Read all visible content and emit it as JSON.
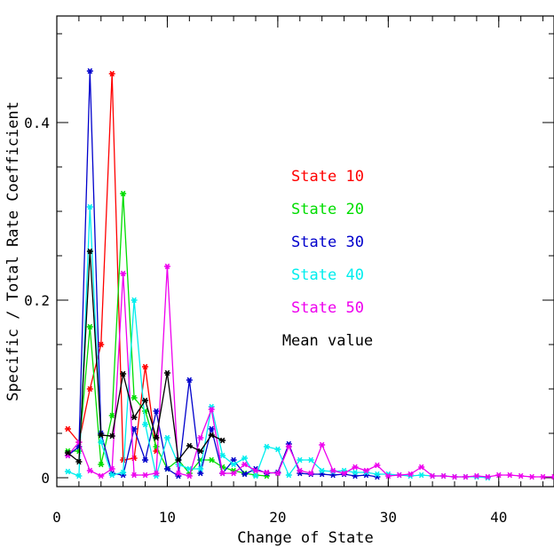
{
  "chart_data": {
    "type": "line",
    "xlabel": "Change of State",
    "ylabel": "Specific / Total Rate Coefficient",
    "xlim": [
      0,
      45
    ],
    "ylim": [
      -0.01,
      0.52
    ],
    "xticks": [
      0,
      10,
      20,
      30,
      40
    ],
    "yticks": [
      0,
      0.2,
      0.4
    ],
    "xticks_labels": [
      "0",
      "10",
      "20",
      "30",
      "40"
    ],
    "yticks_labels": [
      "0",
      "0.2",
      "0.4"
    ],
    "x_minor_step": 2,
    "y_minor_step": 0.05,
    "marker": "asterisk",
    "legend_position": "center-right",
    "series": [
      {
        "name": "State 10",
        "color": "#ff0000",
        "x": [
          1,
          2,
          3,
          4,
          5,
          6,
          7,
          8,
          9
        ],
        "y": [
          0.055,
          0.04,
          0.1,
          0.15,
          0.455,
          0.02,
          0.022,
          0.125,
          0.03
        ]
      },
      {
        "name": "State 20",
        "color": "#00dd00",
        "x": [
          1,
          2,
          3,
          4,
          5,
          6,
          7,
          8,
          9,
          10,
          11,
          12,
          13,
          14,
          15,
          16,
          17,
          18,
          19
        ],
        "y": [
          0.03,
          0.03,
          0.17,
          0.015,
          0.07,
          0.32,
          0.09,
          0.075,
          0.035,
          0.01,
          0.02,
          0.005,
          0.02,
          0.02,
          0.012,
          0.008,
          0.005,
          0.003,
          0.002
        ]
      },
      {
        "name": "State 30",
        "color": "#0000cc",
        "x": [
          1,
          2,
          3,
          4,
          5,
          6,
          7,
          8,
          9,
          10,
          11,
          12,
          13,
          14,
          15,
          16,
          17,
          18,
          19,
          20,
          21,
          22,
          23,
          24,
          25,
          26,
          27,
          28,
          29
        ],
        "y": [
          0.025,
          0.035,
          0.458,
          0.05,
          0.005,
          0.003,
          0.055,
          0.02,
          0.075,
          0.01,
          0.002,
          0.11,
          0.005,
          0.055,
          0.005,
          0.02,
          0.004,
          0.01,
          0.005,
          0.006,
          0.038,
          0.005,
          0.004,
          0.004,
          0.003,
          0.004,
          0.002,
          0.003,
          0.001
        ]
      },
      {
        "name": "State 40",
        "color": "#00eeee",
        "x": [
          1,
          2,
          3,
          4,
          5,
          6,
          7,
          8,
          9,
          10,
          11,
          12,
          13,
          14,
          15,
          16,
          17,
          18,
          19,
          20,
          21,
          22,
          23,
          24,
          25,
          26,
          27,
          28,
          29,
          30,
          31,
          32,
          33,
          34,
          35,
          36,
          37,
          38,
          39
        ],
        "y": [
          0.007,
          0.002,
          0.305,
          0.04,
          0.003,
          0.006,
          0.2,
          0.06,
          0.002,
          0.045,
          0.015,
          0.01,
          0.01,
          0.08,
          0.025,
          0.015,
          0.022,
          0.002,
          0.035,
          0.032,
          0.003,
          0.02,
          0.02,
          0.008,
          0.007,
          0.008,
          0.006,
          0.006,
          0.004,
          0.004,
          0.003,
          0.002,
          0.003,
          0.002,
          0.002,
          0.001,
          0.001,
          0.001,
          0.0
        ]
      },
      {
        "name": "State 50",
        "color": "#ee00ee",
        "x": [
          1,
          2,
          3,
          4,
          5,
          6,
          7,
          8,
          9,
          10,
          11,
          12,
          13,
          14,
          15,
          16,
          17,
          18,
          19,
          20,
          21,
          22,
          23,
          24,
          25,
          26,
          27,
          28,
          29,
          30,
          31,
          32,
          33,
          34,
          35,
          36,
          37,
          38,
          39,
          40,
          41,
          42,
          43,
          44,
          45
        ],
        "y": [
          0.025,
          0.04,
          0.008,
          0.002,
          0.01,
          0.23,
          0.003,
          0.003,
          0.005,
          0.238,
          0.005,
          0.002,
          0.045,
          0.077,
          0.005,
          0.005,
          0.015,
          0.008,
          0.006,
          0.005,
          0.035,
          0.008,
          0.005,
          0.037,
          0.008,
          0.005,
          0.012,
          0.008,
          0.014,
          0.002,
          0.003,
          0.004,
          0.012,
          0.002,
          0.002,
          0.001,
          0.001,
          0.002,
          0.001,
          0.003,
          0.003,
          0.002,
          0.001,
          0.001,
          0.001
        ]
      },
      {
        "name": "Mean value",
        "color": "#000000",
        "x": [
          1,
          2,
          3,
          4,
          5,
          6,
          7,
          8,
          9,
          10,
          11,
          12,
          13,
          14,
          15
        ],
        "y": [
          0.028,
          0.018,
          0.255,
          0.048,
          0.047,
          0.117,
          0.068,
          0.087,
          0.045,
          0.118,
          0.02,
          0.036,
          0.03,
          0.048,
          0.042
        ]
      }
    ]
  }
}
